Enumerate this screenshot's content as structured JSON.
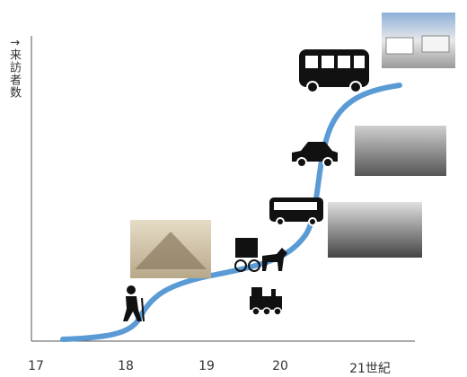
{
  "y_axis_label": "↑来訪者数",
  "x_axis": {
    "labels": [
      "17",
      "18",
      "19",
      "20",
      "21世紀"
    ]
  }
}
